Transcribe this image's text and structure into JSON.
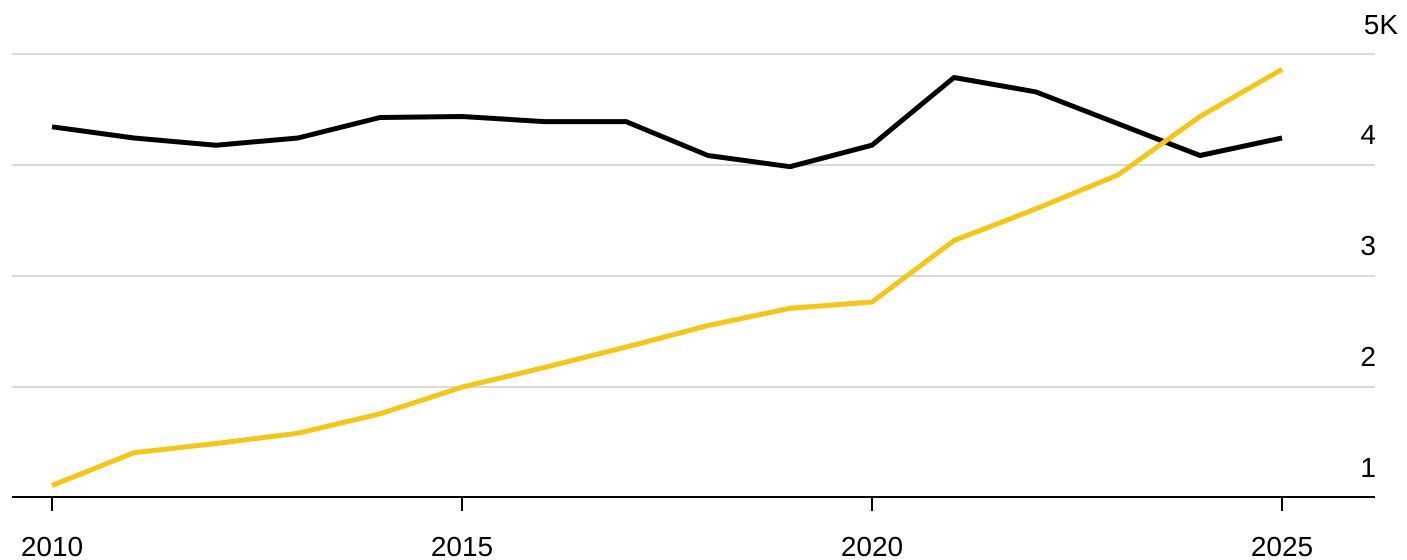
{
  "chart_data": {
    "type": "line",
    "title": "",
    "xlabel": "",
    "ylabel": "",
    "x": [
      2010,
      2011,
      2012,
      2013,
      2014,
      2015,
      2016,
      2017,
      2018,
      2019,
      2020,
      2021,
      2022,
      2023,
      2024,
      2025
    ],
    "series": [
      {
        "color": "#000000",
        "values": [
          4.3,
          4.19,
          4.12,
          4.19,
          4.39,
          4.4,
          4.35,
          4.35,
          4.02,
          3.91,
          4.12,
          4.78,
          4.64,
          4.33,
          4.02,
          4.19
        ]
      },
      {
        "color": "#f5c518",
        "values": [
          0.8,
          1.12,
          1.21,
          1.31,
          1.5,
          1.76,
          1.95,
          2.15,
          2.36,
          2.53,
          2.59,
          3.19,
          3.5,
          3.83,
          4.4,
          4.86
        ]
      }
    ],
    "x_ticks": [
      "2010",
      "2015",
      "2020",
      "2025"
    ],
    "y_ticks": [
      "1",
      "2",
      "3",
      "4",
      "5K"
    ],
    "xlim": [
      2010,
      2025
    ],
    "ylim": [
      0.7,
      5.05
    ],
    "grid": true,
    "y_axis_side": "right"
  }
}
